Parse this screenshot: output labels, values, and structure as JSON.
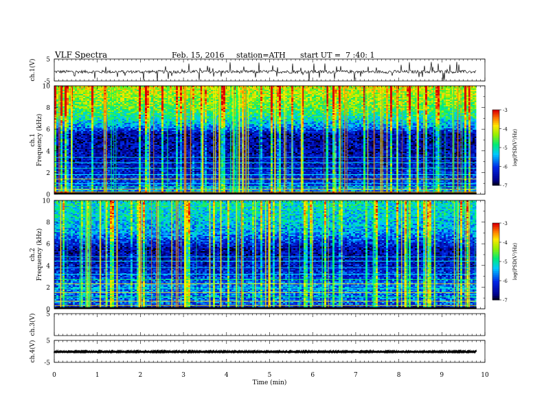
{
  "header": {
    "title": "VLF Spectra",
    "date": "Feb. 15, 2016",
    "station": "station=ATH",
    "start": "start UT =  7 :40: 1"
  },
  "chart_data": [
    {
      "type": "line",
      "panel": "ch1-waveform",
      "ylabel": "ch.1(V)",
      "ylim": [
        -5,
        5
      ],
      "yticks": [
        "5",
        "-5"
      ],
      "xlim": [
        0,
        10
      ],
      "trace": {
        "baseline": -0.8,
        "amplitude": 1.4,
        "spikes": "frequent",
        "end_min": 9.8
      },
      "color": "#000000"
    },
    {
      "type": "heatmap",
      "panel": "ch1-spectrogram",
      "ylabel": "ch.1\nFrequency (kHz)",
      "ylim": [
        0,
        10
      ],
      "yticks": [
        "0",
        "2",
        "4",
        "6",
        "8",
        "10"
      ],
      "xlim": [
        0,
        10
      ],
      "data_end_min": 9.8,
      "colorbar": {
        "label": "log(PSD(V²/Hz)",
        "range": [
          -7,
          -3
        ],
        "ticks": [
          "-3",
          "-4",
          "-5",
          "-6",
          "-7"
        ]
      },
      "profile": [
        {
          "f": 0,
          "level": -4.0
        },
        {
          "f": 0.3,
          "level": -5.5
        },
        {
          "f": 1.0,
          "level": -6.0
        },
        {
          "f": 2.0,
          "level": -6.2
        },
        {
          "f": 3.0,
          "level": -6.4
        },
        {
          "f": 5.5,
          "level": -6.5
        },
        {
          "f": 6.2,
          "level": -5.6
        },
        {
          "f": 7.0,
          "level": -5.0
        },
        {
          "f": 8.0,
          "level": -4.5
        },
        {
          "f": 10.0,
          "level": -4.0
        }
      ]
    },
    {
      "type": "heatmap",
      "panel": "ch2-spectrogram",
      "ylabel": "ch.2\nFrequency (kHz)",
      "ylim": [
        0,
        10
      ],
      "yticks": [
        "0",
        "2",
        "4",
        "6",
        "8",
        "10"
      ],
      "xlim": [
        0,
        10
      ],
      "data_end_min": 9.8,
      "colorbar": {
        "label": "log(PSD(V²/Hz)",
        "range": [
          -7,
          -3
        ],
        "ticks": [
          "-3",
          "-4",
          "-5",
          "-6",
          "-7"
        ]
      },
      "profile": [
        {
          "f": 0,
          "level": -6.5
        },
        {
          "f": 0.5,
          "level": -5.8
        },
        {
          "f": 2.0,
          "level": -5.6
        },
        {
          "f": 3.0,
          "level": -6.0
        },
        {
          "f": 4.0,
          "level": -6.3
        },
        {
          "f": 5.5,
          "level": -6.5
        },
        {
          "f": 7.0,
          "level": -5.5
        },
        {
          "f": 8.5,
          "level": -5.2
        },
        {
          "f": 10.0,
          "level": -5.0
        }
      ]
    },
    {
      "type": "line",
      "panel": "ch3-waveform",
      "ylabel": "ch.3(V)",
      "ylim": [
        -5,
        5
      ],
      "yticks": [
        "5"
      ],
      "xlim": [
        0,
        10
      ],
      "trace": null
    },
    {
      "type": "line",
      "panel": "ch4-waveform",
      "ylabel": "ch.4(V)",
      "ylim": [
        -5,
        5
      ],
      "yticks": [
        "5",
        "-5"
      ],
      "xlim": [
        0,
        10
      ],
      "trace": {
        "baseline": 0,
        "amplitude": 0.3,
        "spikes": "none",
        "end_min": 9.8
      },
      "color": "#000000",
      "xlabel": "Time  (min)",
      "xticks": [
        "0",
        "1",
        "2",
        "3",
        "4",
        "5",
        "6",
        "7",
        "8",
        "9",
        "10"
      ]
    }
  ]
}
